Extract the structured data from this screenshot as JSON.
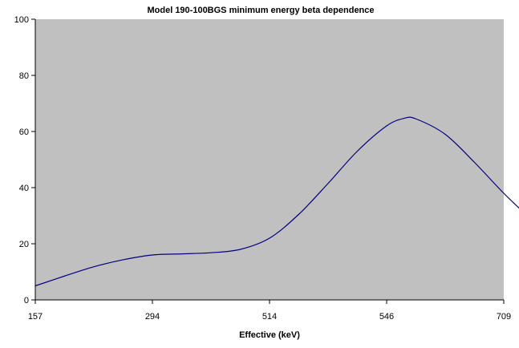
{
  "chart_data": {
    "type": "line",
    "title": "Model 190-100BGS minimum energy beta dependence",
    "xlabel": "Effective (keV)",
    "ylabel": "",
    "x_tick_labels": [
      "157",
      "294",
      "514",
      "546",
      "709"
    ],
    "y_tick_labels": [
      "0",
      "20",
      "40",
      "60",
      "80",
      "100"
    ],
    "ylim": [
      0,
      100
    ],
    "grid": false,
    "legend": "none",
    "plot_background": "#c0c0c0",
    "series": [
      {
        "name": "",
        "color": "#000080",
        "points": [
          {
            "x": 0.0,
            "y": 5.0
          },
          {
            "x": 0.25,
            "y": 8.5
          },
          {
            "x": 0.5,
            "y": 11.8
          },
          {
            "x": 0.75,
            "y": 14.3
          },
          {
            "x": 1.0,
            "y": 16.0
          },
          {
            "x": 1.25,
            "y": 16.4
          },
          {
            "x": 1.5,
            "y": 16.8
          },
          {
            "x": 1.75,
            "y": 18.0
          },
          {
            "x": 2.0,
            "y": 22.0
          },
          {
            "x": 2.25,
            "y": 30.5
          },
          {
            "x": 2.5,
            "y": 41.5
          },
          {
            "x": 2.75,
            "y": 53.0
          },
          {
            "x": 3.0,
            "y": 62.0
          },
          {
            "x": 3.15,
            "y": 64.7
          },
          {
            "x": 3.25,
            "y": 64.5
          },
          {
            "x": 3.5,
            "y": 59.0
          },
          {
            "x": 3.75,
            "y": 49.0
          },
          {
            "x": 4.0,
            "y": 38.0
          },
          {
            "x": 4.25,
            "y": 28.0
          }
        ]
      }
    ]
  }
}
